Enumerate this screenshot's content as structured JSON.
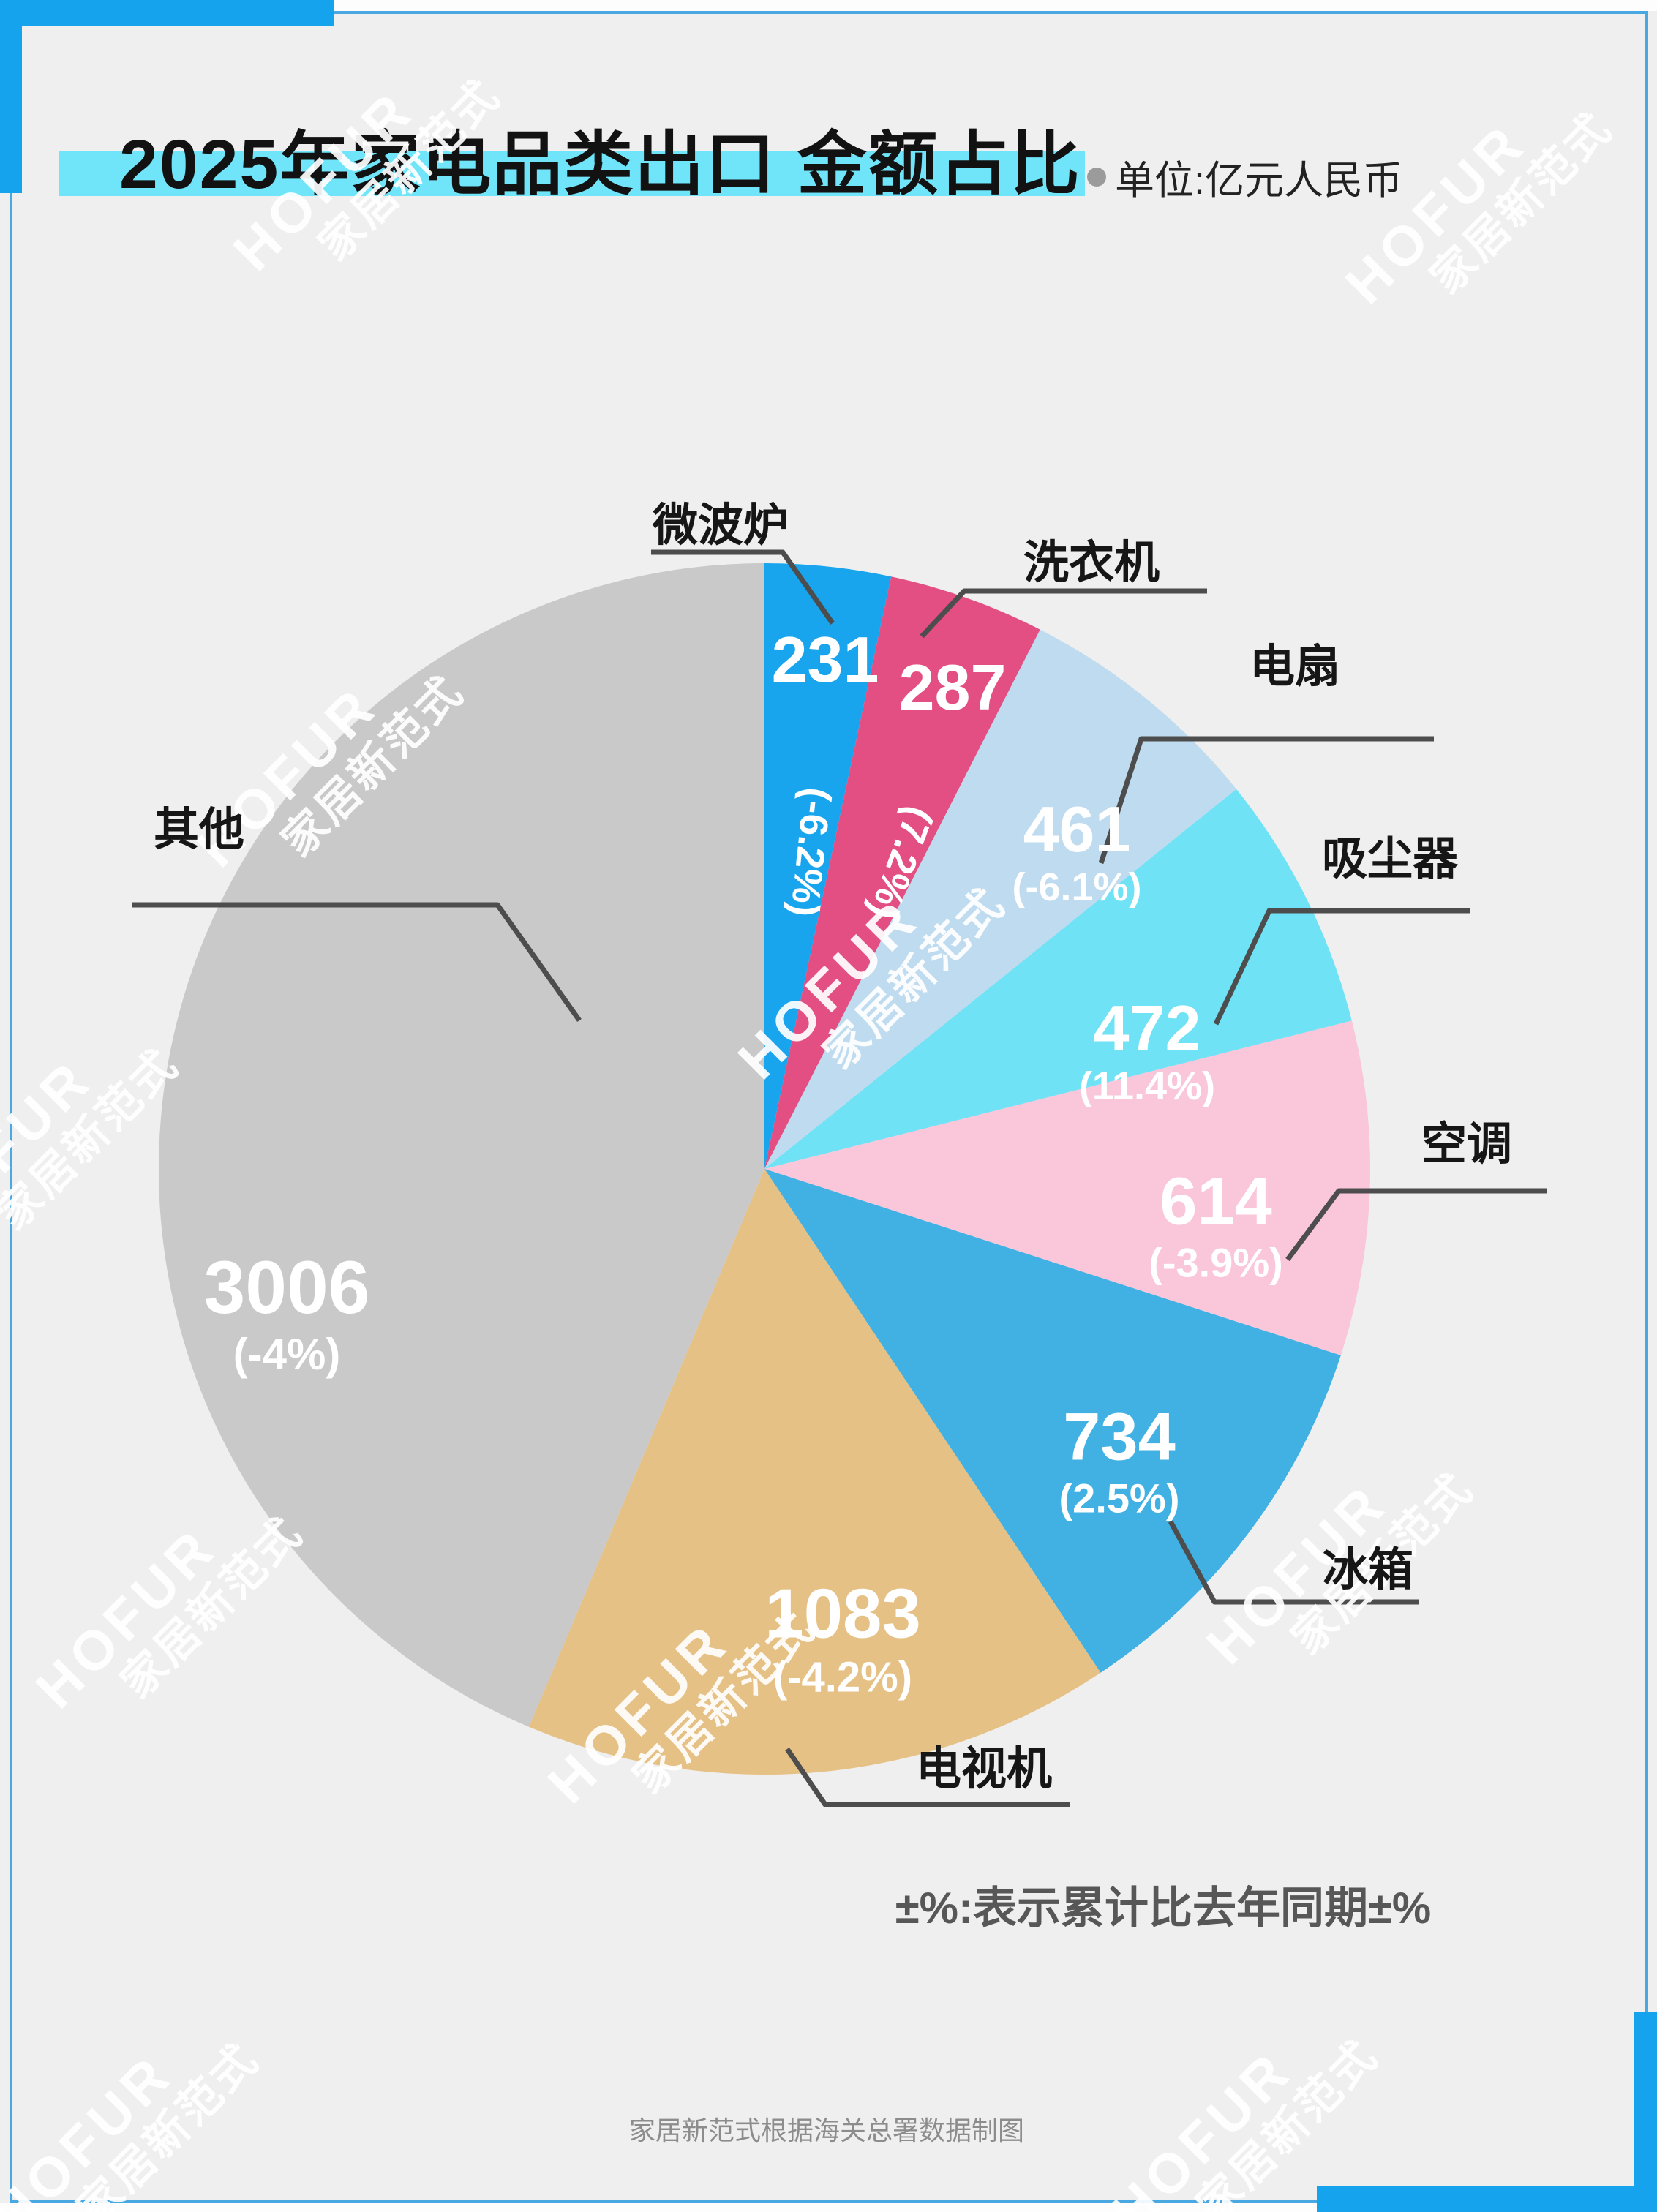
{
  "header": {
    "title": "2025年家电品类出口 金额占比",
    "unit": "单位:亿元人民币"
  },
  "chart_data": {
    "type": "pie",
    "title": "2025年家电品类出口 金额占比",
    "unit": "亿元人民币",
    "start_angle": "top",
    "direction": "clockwise",
    "slices": [
      {
        "label": "微波炉",
        "value": 231,
        "change": "(-6.2%)",
        "color": "#18a5ee"
      },
      {
        "label": "洗衣机",
        "value": 287,
        "change": "(7.2%)",
        "color": "#e34f82"
      },
      {
        "label": "电扇",
        "value": 461,
        "change": "(-6.1%)",
        "color": "#bedbef"
      },
      {
        "label": "吸尘器",
        "value": 472,
        "change": "(11.4%)",
        "color": "#6fe2f6"
      },
      {
        "label": "空调",
        "value": 614,
        "change": "(-3.9%)",
        "color": "#f9c6da"
      },
      {
        "label": "冰箱",
        "value": 734,
        "change": "(2.5%)",
        "color": "#41b1e4"
      },
      {
        "label": "电视机",
        "value": 1083,
        "change": "(-4.2%)",
        "color": "#e6c185"
      },
      {
        "label": "其他",
        "value": 3006,
        "change": "(-4%)",
        "color": "#c9c9c9"
      }
    ]
  },
  "watermark": {
    "line1": "HOFUR",
    "line2": "家居新范式"
  },
  "footer": {
    "note": "±%:表示累计比去年同期±%",
    "credit": "家居新范式根据海关总署数据制图"
  },
  "colors": {
    "background": "#efefef",
    "accent_blue": "#14a3ec",
    "title_highlight": "#70e5f9",
    "frame": "#49a8e2",
    "leader": "#4d4d4d"
  }
}
